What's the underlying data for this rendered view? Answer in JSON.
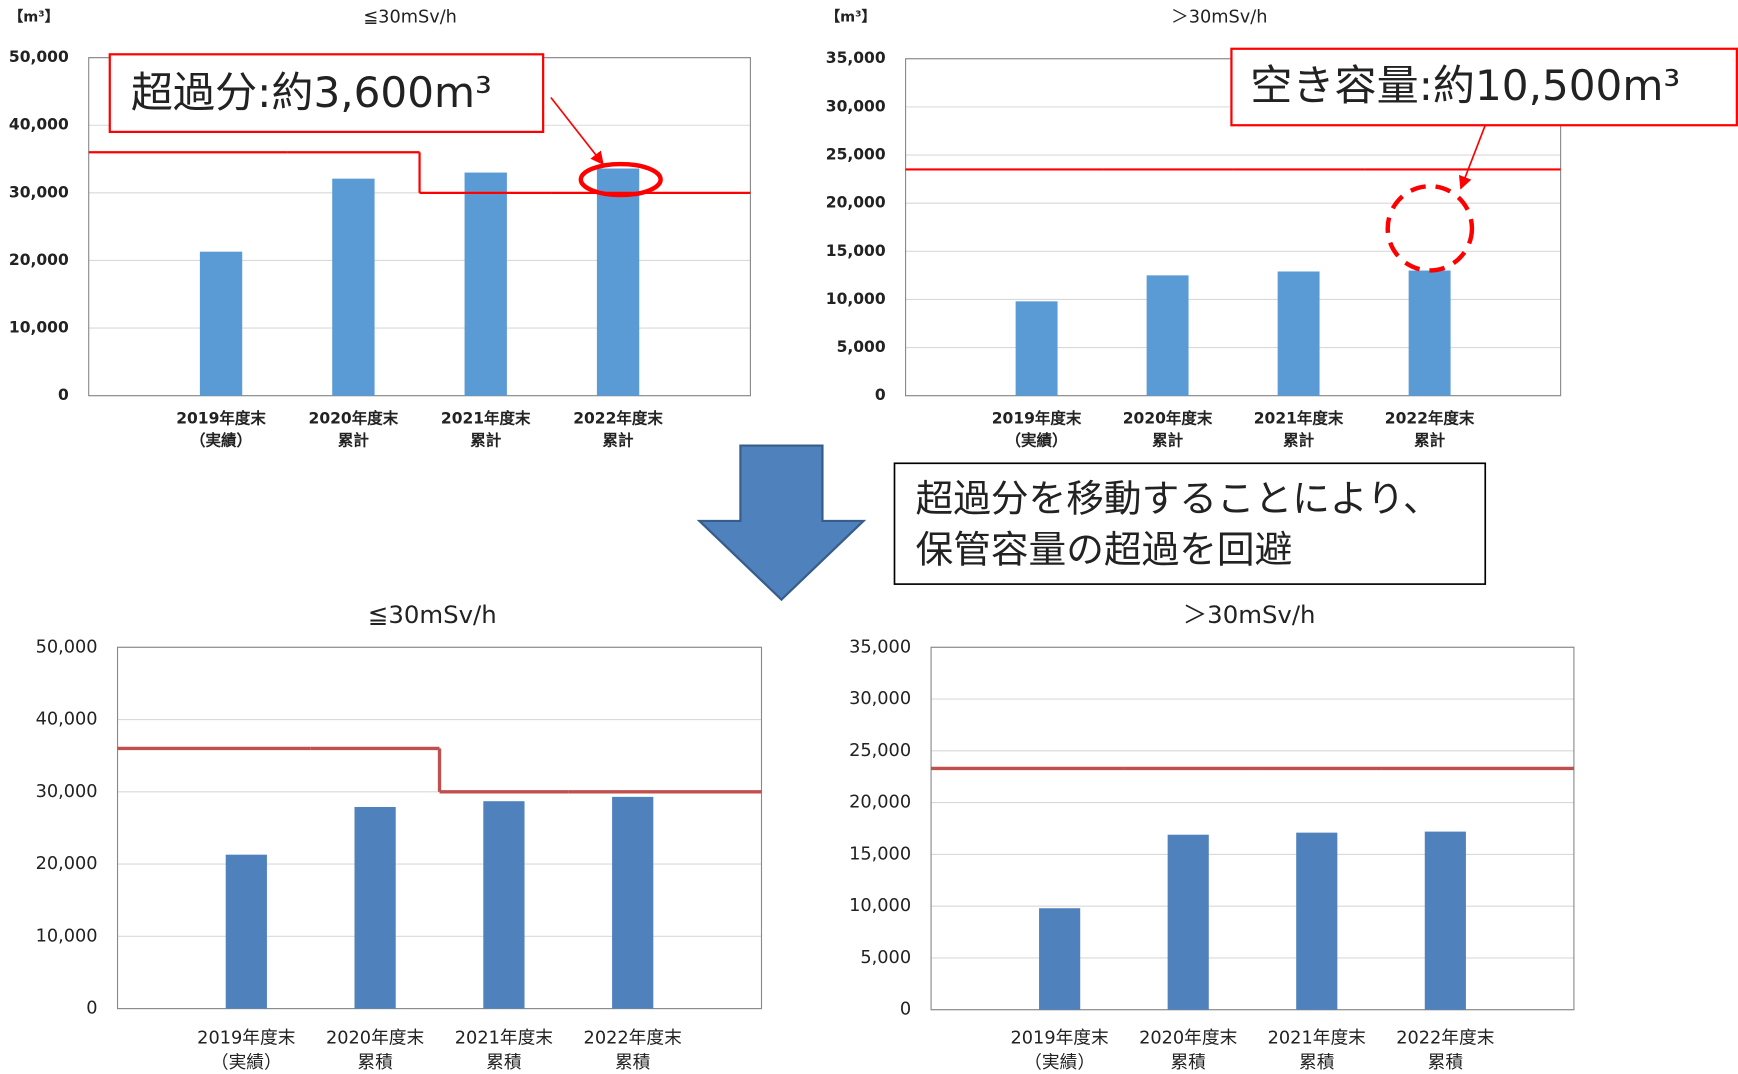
{
  "chart_data": [
    {
      "type": "bar",
      "title": "≦30mSv/h",
      "unit": "【m³】",
      "annotation": "超過分:約3,600m³",
      "categories": [
        [
          "2019年度末",
          "（実績）"
        ],
        [
          "2020年度末",
          "累計"
        ],
        [
          "2021年度末",
          "累計"
        ],
        [
          "2022年度末",
          "累計"
        ]
      ],
      "series": [
        {
          "color": "#5b9bd5",
          "values": [
            21300,
            32100,
            33000,
            33600
          ]
        },
        {
          "type": "step",
          "color": "#ff0000",
          "values": [
            36000,
            36000,
            30000,
            30000
          ]
        }
      ],
      "ylim": [
        0,
        50000
      ],
      "yticks": [
        0,
        {
          "value": 10000,
          "label": "10,000"
        },
        {
          "value": 20000,
          "label": "20,000"
        },
        {
          "value": 30000,
          "label": "30,000"
        },
        {
          "value": 40000,
          "label": "40,000"
        },
        {
          "value": 50000,
          "label": "50,000"
        }
      ],
      "grid": true
    },
    {
      "type": "bar",
      "title": "＞30mSv/h",
      "unit": "【m³】",
      "annotation": "空き容量:約10,500m³",
      "categories": [
        [
          "2019年度末",
          "（実績）"
        ],
        [
          "2020年度末",
          "累計"
        ],
        [
          "2021年度末",
          "累計"
        ],
        [
          "2022年度末",
          "累計"
        ]
      ],
      "series": [
        {
          "color": "#5b9bd5",
          "values": [
            9800,
            12500,
            12900,
            13000
          ]
        },
        {
          "type": "step",
          "color": "#ff0000",
          "values": [
            23500,
            23500,
            23500,
            23500
          ]
        }
      ],
      "ylim": [
        0,
        35000
      ],
      "yticks": [
        0,
        {
          "value": 5000,
          "label": "5,000"
        },
        {
          "value": 10000,
          "label": "10,000"
        },
        {
          "value": 15000,
          "label": "15,000"
        },
        {
          "value": 20000,
          "label": "20,000"
        },
        {
          "value": 25000,
          "label": "25,000"
        },
        {
          "value": 30000,
          "label": "30,000"
        },
        {
          "value": 35000,
          "label": "35,000"
        }
      ],
      "grid": true
    },
    {
      "type": "bar",
      "title": "≦30mSv/h",
      "categories": [
        [
          "2019年度末",
          "（実績）"
        ],
        [
          "2020年度末",
          "累積"
        ],
        [
          "2021年度末",
          "累積"
        ],
        [
          "2022年度末",
          "累積"
        ]
      ],
      "series": [
        {
          "color": "#4f81bd",
          "values": [
            21300,
            27900,
            28700,
            29300
          ]
        },
        {
          "type": "step",
          "color": "#c0504d",
          "values": [
            36000,
            36000,
            30000,
            30000
          ]
        }
      ],
      "ylim": [
        0,
        50000
      ],
      "yticks": [
        0,
        {
          "value": 10000,
          "label": "10,000"
        },
        {
          "value": 20000,
          "label": "20,000"
        },
        {
          "value": 30000,
          "label": "30,000"
        },
        {
          "value": 40000,
          "label": "40,000"
        },
        {
          "value": 50000,
          "label": "50,000"
        }
      ],
      "grid": true
    },
    {
      "type": "bar",
      "title": "＞30mSv/h",
      "categories": [
        [
          "2019年度末",
          "（実績）"
        ],
        [
          "2020年度末",
          "累積"
        ],
        [
          "2021年度末",
          "累積"
        ],
        [
          "2022年度末",
          "累積"
        ]
      ],
      "series": [
        {
          "color": "#4f81bd",
          "values": [
            9800,
            16900,
            17100,
            17200
          ]
        },
        {
          "type": "step",
          "color": "#c0504d",
          "values": [
            23300,
            23300,
            23300,
            23300
          ]
        }
      ],
      "ylim": [
        0,
        35000
      ],
      "yticks": [
        0,
        {
          "value": 5000,
          "label": "5,000"
        },
        {
          "value": 10000,
          "label": "10,000"
        },
        {
          "value": 15000,
          "label": "15,000"
        },
        {
          "value": 20000,
          "label": "20,000"
        },
        {
          "value": 25000,
          "label": "25,000"
        },
        {
          "value": 30000,
          "label": "30,000"
        },
        {
          "value": 35000,
          "label": "35,000"
        }
      ],
      "grid": true
    }
  ],
  "callout": [
    "超過分を移動することにより、",
    "保管容量の超過を回避"
  ]
}
